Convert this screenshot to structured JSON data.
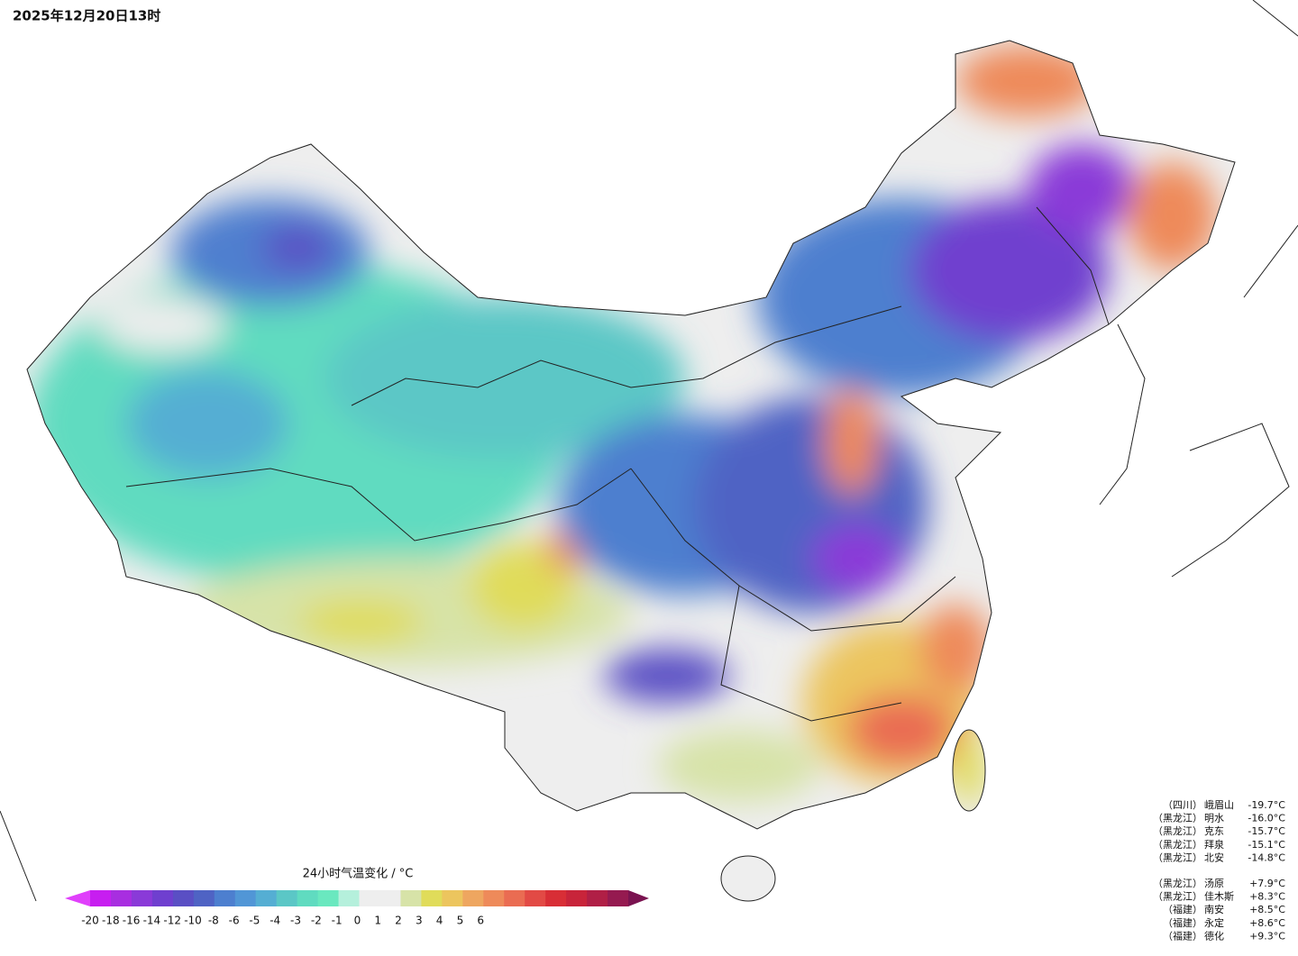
{
  "title": "2025年12月20日13时",
  "colorbar": {
    "title": "24小时气温变化 / °C",
    "ticks": [
      -20,
      -18,
      -16,
      -14,
      -12,
      -10,
      -8,
      -6,
      -5,
      -4,
      -3,
      -2,
      -1,
      0,
      1,
      2,
      3,
      4,
      5,
      6
    ],
    "colors": [
      "#e040fb",
      "#c71ef0",
      "#a82ee0",
      "#8a3ad8",
      "#6f3fcf",
      "#5a4fc4",
      "#4f63c4",
      "#4d7fcf",
      "#5196d6",
      "#55aed3",
      "#5bc7c6",
      "#60dbc0",
      "#6ae8bf",
      "#b5f0dc",
      "#eeeeee",
      "#eeeeee",
      "#d7e3a8",
      "#e0dc5a",
      "#ecc55e",
      "#eea660",
      "#ee8a5a",
      "#ea6c52",
      "#e24a45",
      "#d82e36",
      "#c8243a",
      "#b01f46",
      "#951a50",
      "#7a1350"
    ]
  },
  "stations": [
    {
      "region": "（四川）",
      "name": "峨眉山",
      "value": "-19.7°C"
    },
    {
      "region": "（黑龙江）",
      "name": "明水",
      "value": "-16.0°C"
    },
    {
      "region": "（黑龙江）",
      "name": "克东",
      "value": "-15.7°C"
    },
    {
      "region": "（黑龙江）",
      "name": "拜泉",
      "value": "-15.1°C"
    },
    {
      "region": "（黑龙江）",
      "name": "北安",
      "value": "-14.8°C"
    },
    {
      "region": "（黑龙江）",
      "name": "汤原",
      "value": "+7.9°C"
    },
    {
      "region": "（黑龙江）",
      "name": "佳木斯",
      "value": "+8.3°C"
    },
    {
      "region": "（福建）",
      "name": "南安",
      "value": "+8.5°C"
    },
    {
      "region": "（福建）",
      "name": "永定",
      "value": "+8.6°C"
    },
    {
      "region": "（福建）",
      "name": "德化",
      "value": "+9.3°C"
    }
  ]
}
